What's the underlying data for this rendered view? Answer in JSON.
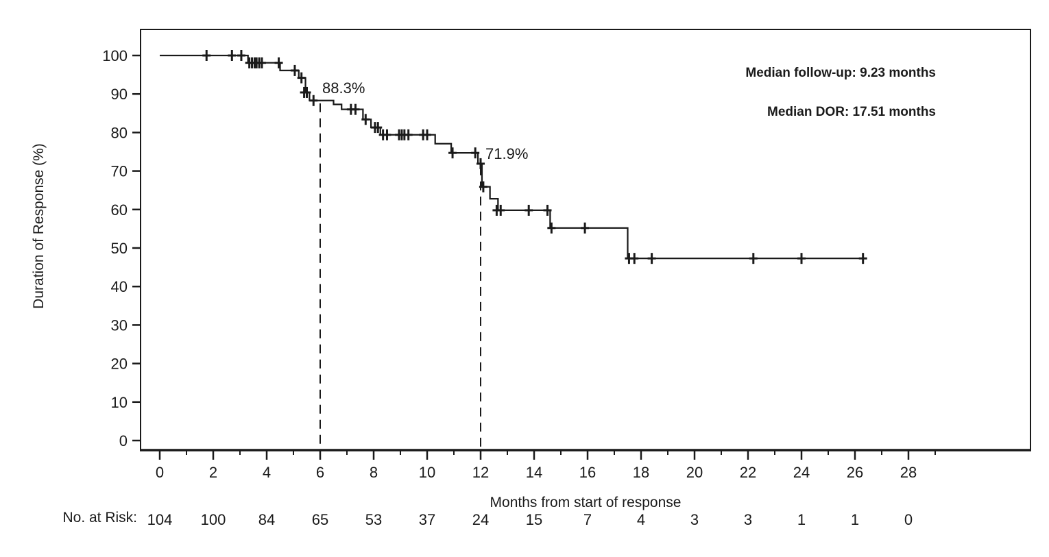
{
  "chart_data": {
    "type": "line",
    "subtype": "kaplan-meier-step-curve",
    "title": "",
    "xlabel": "Months from start of response",
    "ylabel": "Duration of Response (%)",
    "xlim": [
      0,
      29.5
    ],
    "ylim": [
      0,
      100
    ],
    "grid": "off",
    "x_ticks_major": [
      0,
      2,
      4,
      6,
      8,
      10,
      12,
      14,
      16,
      18,
      20,
      22,
      24,
      26,
      28
    ],
    "x_ticks_minor": [
      1,
      3,
      5,
      7,
      9,
      11,
      13,
      15,
      17,
      19,
      21,
      23,
      25,
      27,
      29
    ],
    "y_ticks": [
      0,
      10,
      20,
      30,
      40,
      50,
      60,
      70,
      80,
      90,
      100
    ],
    "line_color": "#1a1a1a",
    "series": [
      {
        "steps": [
          [
            0,
            100
          ],
          [
            3.3,
            98.1
          ],
          [
            4.5,
            96.1
          ],
          [
            5.2,
            94.2
          ],
          [
            5.45,
            90.4
          ],
          [
            5.6,
            88.3
          ],
          [
            6.5,
            87.3
          ],
          [
            6.8,
            86.0
          ],
          [
            7.6,
            83.4
          ],
          [
            7.9,
            81.3
          ],
          [
            8.25,
            79.4
          ],
          [
            10.3,
            77.1
          ],
          [
            10.9,
            74.7
          ],
          [
            11.9,
            71.9
          ],
          [
            12.05,
            65.9
          ],
          [
            12.35,
            62.8
          ],
          [
            12.65,
            59.8
          ],
          [
            14.6,
            55.2
          ],
          [
            17.5,
            47.3
          ]
        ],
        "end_time": 26.3,
        "censors": [
          [
            1.75,
            100
          ],
          [
            2.7,
            100
          ],
          [
            3.05,
            100
          ],
          [
            3.35,
            98.1
          ],
          [
            3.45,
            98.1
          ],
          [
            3.55,
            98.1
          ],
          [
            3.62,
            98.1
          ],
          [
            3.72,
            98.1
          ],
          [
            3.82,
            98.1
          ],
          [
            4.45,
            98.1
          ],
          [
            5.05,
            96.1
          ],
          [
            5.3,
            94.2
          ],
          [
            5.4,
            90.4
          ],
          [
            5.5,
            90.4
          ],
          [
            5.75,
            88.3
          ],
          [
            7.15,
            86.0
          ],
          [
            7.32,
            86.0
          ],
          [
            7.7,
            83.4
          ],
          [
            8.05,
            81.3
          ],
          [
            8.16,
            81.3
          ],
          [
            8.35,
            79.4
          ],
          [
            8.5,
            79.4
          ],
          [
            8.95,
            79.4
          ],
          [
            9.05,
            79.4
          ],
          [
            9.15,
            79.4
          ],
          [
            9.3,
            79.4
          ],
          [
            9.85,
            79.4
          ],
          [
            10.0,
            79.4
          ],
          [
            10.95,
            74.7
          ],
          [
            11.8,
            74.7
          ],
          [
            12.0,
            71.9
          ],
          [
            12.1,
            65.9
          ],
          [
            12.6,
            59.8
          ],
          [
            12.75,
            59.8
          ],
          [
            13.8,
            59.8
          ],
          [
            14.5,
            59.8
          ],
          [
            14.65,
            55.2
          ],
          [
            15.9,
            55.2
          ],
          [
            17.55,
            47.3
          ],
          [
            17.75,
            47.3
          ],
          [
            18.4,
            47.3
          ],
          [
            22.2,
            47.3
          ],
          [
            24.0,
            47.3
          ],
          [
            26.3,
            47.3
          ]
        ]
      }
    ],
    "reference_lines": [
      {
        "x": 6,
        "y_top_percent": 88.3,
        "label": "88.3%"
      },
      {
        "x": 12,
        "y_top_percent": 71.9,
        "label": "71.9%"
      }
    ],
    "annotations": {
      "median_followup": "Median follow-up: 9.23 months",
      "median_dor": "Median DOR: 17.51 months"
    },
    "risk_table": {
      "label": "No. at Risk:",
      "times": [
        0,
        2,
        4,
        6,
        8,
        10,
        12,
        14,
        16,
        18,
        20,
        22,
        24,
        26,
        28
      ],
      "counts": [
        104,
        100,
        84,
        65,
        53,
        37,
        24,
        15,
        7,
        4,
        3,
        3,
        1,
        1,
        0
      ]
    }
  }
}
